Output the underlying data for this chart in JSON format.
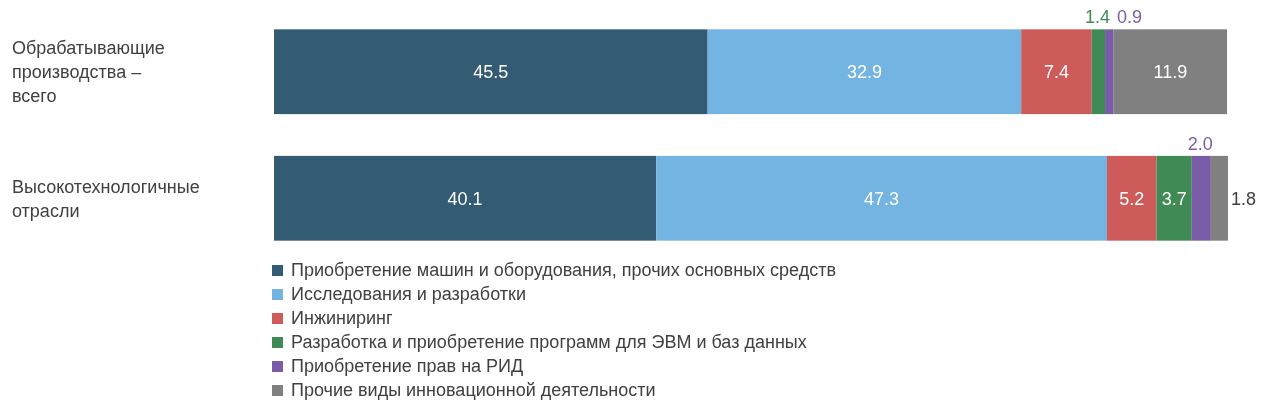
{
  "chart_data": {
    "type": "bar",
    "orientation": "horizontal",
    "stacked": true,
    "legend": "bottom",
    "categories": [
      "Обрабатывающие производства – всего",
      "Высокотехнологичные отрасли"
    ],
    "series": [
      {
        "name": "Приобретение машин и оборудования, прочих основных средств",
        "color": "#335b74",
        "values": [
          45.5,
          40.1
        ],
        "value_labels": [
          "45.5",
          "40.1"
        ]
      },
      {
        "name": "Исследования и разработки",
        "color": "#74b4e2",
        "values": [
          32.9,
          47.3
        ],
        "value_labels": [
          "32.9",
          "47.3"
        ]
      },
      {
        "name": "Инжиниринг",
        "color": "#cd5b5a",
        "values": [
          7.4,
          5.2
        ],
        "value_labels": [
          "7.4",
          "5.2"
        ]
      },
      {
        "name": "Разработка и приобретение программ для ЭВМ и баз данных",
        "color": "#3f8a55",
        "values": [
          1.4,
          3.7
        ],
        "value_labels": [
          "1.4",
          "3.7"
        ]
      },
      {
        "name": "Приобретение прав на РИД",
        "color": "#7a5ca8",
        "values": [
          0.9,
          2.0
        ],
        "value_labels": [
          "0.9",
          "2.0"
        ]
      },
      {
        "name": "Прочие виды инновационной деятельности",
        "color": "#808080",
        "values": [
          11.9,
          1.8
        ],
        "value_labels": [
          "11.9",
          "1.8"
        ]
      }
    ]
  }
}
